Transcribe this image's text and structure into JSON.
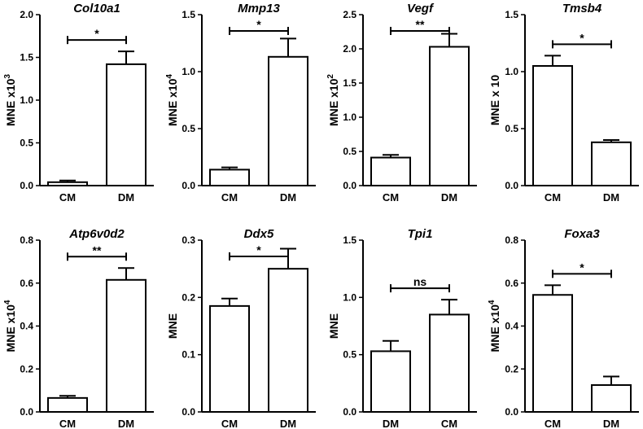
{
  "chart_data": [
    {
      "type": "bar",
      "title": "Col10a1",
      "ylabel": "MNE x10",
      "ylabel_sup": "3",
      "categories": [
        "CM",
        "DM"
      ],
      "values": [
        0.04,
        1.42
      ],
      "errors": [
        0.02,
        0.15
      ],
      "ylim": [
        0,
        2.0
      ],
      "yticks": [
        "0.0",
        "0.5",
        "1.0",
        "1.5",
        "2.0"
      ],
      "significance": "*"
    },
    {
      "type": "bar",
      "title": "Mmp13",
      "ylabel": "MNE x10",
      "ylabel_sup": "4",
      "categories": [
        "CM",
        "DM"
      ],
      "values": [
        0.14,
        1.13
      ],
      "errors": [
        0.02,
        0.16
      ],
      "ylim": [
        0,
        1.5
      ],
      "yticks": [
        "0.0",
        "0.5",
        "1.0",
        "1.5"
      ],
      "significance": "*"
    },
    {
      "type": "bar",
      "title": "Vegf",
      "ylabel": "MNE x10",
      "ylabel_sup": "2",
      "categories": [
        "CM",
        "DM"
      ],
      "values": [
        0.41,
        2.03
      ],
      "errors": [
        0.04,
        0.19
      ],
      "ylim": [
        0,
        2.5
      ],
      "yticks": [
        "0.0",
        "0.5",
        "1.0",
        "1.5",
        "2.0",
        "2.5"
      ],
      "significance": "**"
    },
    {
      "type": "bar",
      "title": "Tmsb4",
      "ylabel": "MNE x 10",
      "ylabel_sup": "",
      "categories": [
        "CM",
        "DM"
      ],
      "values": [
        1.05,
        0.38
      ],
      "errors": [
        0.09,
        0.02
      ],
      "ylim": [
        0,
        1.5
      ],
      "yticks": [
        "0.0",
        "0.5",
        "1.0",
        "1.5"
      ],
      "significance": "*"
    },
    {
      "type": "bar",
      "title": "Atp6v0d2",
      "ylabel": "MNE x10",
      "ylabel_sup": "4",
      "categories": [
        "CM",
        "DM"
      ],
      "values": [
        0.065,
        0.615
      ],
      "errors": [
        0.01,
        0.055
      ],
      "ylim": [
        0,
        0.8
      ],
      "yticks": [
        "0.0",
        "0.2",
        "0.4",
        "0.6",
        "0.8"
      ],
      "significance": "**"
    },
    {
      "type": "bar",
      "title": "Ddx5",
      "ylabel": "MNE",
      "ylabel_sup": "",
      "categories": [
        "CM",
        "DM"
      ],
      "values": [
        0.185,
        0.25
      ],
      "errors": [
        0.013,
        0.035
      ],
      "ylim": [
        0,
        0.3
      ],
      "yticks": [
        "0.0",
        "0.1",
        "0.2",
        "0.3"
      ],
      "significance": "*"
    },
    {
      "type": "bar",
      "title": "Tpi1",
      "ylabel": "MNE",
      "ylabel_sup": "",
      "categories": [
        "DM",
        "CM"
      ],
      "values": [
        0.53,
        0.85
      ],
      "errors": [
        0.09,
        0.13
      ],
      "ylim": [
        0,
        1.5
      ],
      "yticks": [
        "0.0",
        "0.5",
        "1.0",
        "1.5"
      ],
      "significance": "ns"
    },
    {
      "type": "bar",
      "title": "Foxa3",
      "ylabel": "MNE x10",
      "ylabel_sup": "4",
      "categories": [
        "CM",
        "DM"
      ],
      "values": [
        0.545,
        0.125
      ],
      "errors": [
        0.045,
        0.04
      ],
      "ylim": [
        0,
        0.8
      ],
      "yticks": [
        "0.0",
        "0.2",
        "0.4",
        "0.6",
        "0.8"
      ],
      "significance": "*"
    }
  ]
}
